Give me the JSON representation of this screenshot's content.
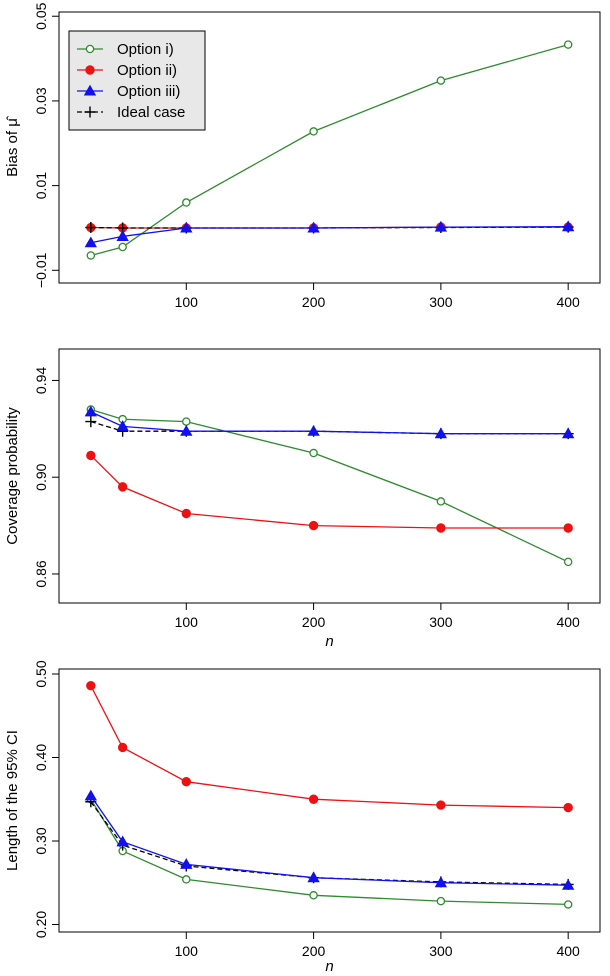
{
  "chart_data": [
    {
      "type": "line",
      "title": "",
      "xlabel": "",
      "ylabel": "Bias of μ̂",
      "x": [
        25,
        50,
        100,
        200,
        300,
        400
      ],
      "xlim": [
        0,
        425
      ],
      "xticks": [
        "100",
        "200",
        "300",
        "400"
      ],
      "xtick_values": [
        100,
        200,
        300,
        400
      ],
      "ylim": [
        -0.013,
        0.051
      ],
      "yticks": [
        "−0.01",
        "0.01",
        "0.03",
        "0.05"
      ],
      "ytick_values": [
        -0.01,
        0.01,
        0.03,
        0.05
      ],
      "legend": {
        "position": "top-left",
        "items": [
          "Option i)",
          "Option ii)",
          "Option iii)",
          "Ideal case"
        ]
      },
      "series": [
        {
          "name": "Option i)",
          "color": "#2e8b2e",
          "marker": "open-circle",
          "dash": false,
          "values": [
            -0.0065,
            -0.0045,
            0.006,
            0.0228,
            0.0348,
            0.0433
          ]
        },
        {
          "name": "Option ii)",
          "color": "#ee1111",
          "marker": "filled-circle",
          "dash": false,
          "values": [
            0.0001,
            0.0,
            0.0,
            0.0,
            0.0002,
            0.0002
          ]
        },
        {
          "name": "Option iii)",
          "color": "#1111ee",
          "marker": "filled-triangle",
          "dash": false,
          "values": [
            -0.0035,
            -0.002,
            0.0,
            0.0,
            0.0002,
            0.0003
          ]
        },
        {
          "name": "Ideal case",
          "color": "#000000",
          "marker": "plus",
          "dash": true,
          "values": [
            0.0001,
            0.0,
            0.0,
            0.0,
            0.0001,
            0.0002
          ]
        }
      ]
    },
    {
      "type": "line",
      "title": "",
      "xlabel": "n",
      "ylabel": "Coverage probability",
      "x": [
        25,
        50,
        100,
        200,
        300,
        400
      ],
      "xlim": [
        0,
        425
      ],
      "xticks": [
        "100",
        "200",
        "300",
        "400"
      ],
      "xtick_values": [
        100,
        200,
        300,
        400
      ],
      "ylim": [
        0.848,
        0.953
      ],
      "yticks": [
        "0.86",
        "0.90",
        "0.94"
      ],
      "ytick_values": [
        0.86,
        0.9,
        0.94
      ],
      "series": [
        {
          "name": "Option i)",
          "color": "#2e8b2e",
          "marker": "open-circle",
          "dash": false,
          "values": [
            0.928,
            0.924,
            0.923,
            0.91,
            0.89,
            0.865
          ]
        },
        {
          "name": "Option ii)",
          "color": "#ee1111",
          "marker": "filled-circle",
          "dash": false,
          "values": [
            0.909,
            0.896,
            0.885,
            0.88,
            0.879,
            0.879
          ]
        },
        {
          "name": "Option iii)",
          "color": "#1111ee",
          "marker": "filled-triangle",
          "dash": false,
          "values": [
            0.927,
            0.921,
            0.919,
            0.919,
            0.918,
            0.918
          ]
        },
        {
          "name": "Ideal case",
          "color": "#000000",
          "marker": "plus",
          "dash": true,
          "values": [
            0.923,
            0.919,
            0.919,
            0.919,
            0.918,
            0.918
          ]
        }
      ]
    },
    {
      "type": "line",
      "title": "",
      "xlabel": "n",
      "ylabel": "Length of the 95% CI",
      "x": [
        25,
        50,
        100,
        200,
        300,
        400
      ],
      "xlim": [
        0,
        425
      ],
      "xticks": [
        "100",
        "200",
        "300",
        "400"
      ],
      "xtick_values": [
        100,
        200,
        300,
        400
      ],
      "ylim": [
        0.191,
        0.506
      ],
      "yticks": [
        "0.20",
        "0.30",
        "0.40",
        "0.50"
      ],
      "ytick_values": [
        0.2,
        0.3,
        0.4,
        0.5
      ],
      "series": [
        {
          "name": "Option i)",
          "color": "#2e8b2e",
          "marker": "open-circle",
          "dash": false,
          "values": [
            0.35,
            0.288,
            0.254,
            0.235,
            0.228,
            0.224
          ]
        },
        {
          "name": "Option ii)",
          "color": "#ee1111",
          "marker": "filled-circle",
          "dash": false,
          "values": [
            0.486,
            0.412,
            0.371,
            0.35,
            0.343,
            0.34
          ]
        },
        {
          "name": "Option iii)",
          "color": "#1111ee",
          "marker": "filled-triangle",
          "dash": false,
          "values": [
            0.354,
            0.299,
            0.272,
            0.256,
            0.25,
            0.247
          ]
        },
        {
          "name": "Ideal case",
          "color": "#000000",
          "marker": "plus",
          "dash": true,
          "values": [
            0.347,
            0.295,
            0.27,
            0.256,
            0.251,
            0.248
          ]
        }
      ]
    }
  ]
}
